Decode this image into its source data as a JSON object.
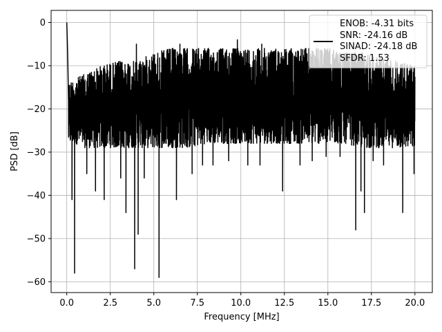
{
  "chart_data": {
    "type": "line",
    "title": "",
    "xlabel": "Frequency [MHz]",
    "ylabel": "PSD [dB]",
    "xlim": [
      -0.9,
      21.0
    ],
    "ylim": [
      -62.5,
      2.8
    ],
    "xticks": [
      0.0,
      2.5,
      5.0,
      7.5,
      10.0,
      12.5,
      15.0,
      17.5,
      20.0
    ],
    "xtick_labels": [
      "0.0",
      "2.5",
      "5.0",
      "7.5",
      "10.0",
      "12.5",
      "15.0",
      "17.5",
      "20.0"
    ],
    "yticks": [
      0,
      -10,
      -20,
      -30,
      -40,
      -50,
      -60
    ],
    "ytick_labels": [
      "0",
      "−10",
      "−20",
      "−30",
      "−40",
      "−50",
      "−60"
    ],
    "grid": true,
    "legend_position": "top-right",
    "legend_lines": [
      "ENOB: -4.31 bits",
      "SNR: -24.16 dB",
      "SINAD: -24.18 dB",
      "SFDR: 1.53"
    ],
    "series": [
      {
        "color": "#000000",
        "envelope": {
          "x": [
            0.1,
            0.5,
            1,
            2,
            3,
            4,
            5,
            6,
            7,
            8,
            9,
            10,
            11,
            12,
            13,
            14,
            15,
            16,
            17,
            18,
            19,
            20
          ],
          "upper": [
            -14,
            -13,
            -12,
            -10,
            -9,
            -9,
            -7,
            -6,
            -6,
            -6,
            -6,
            -6,
            -6,
            -6,
            -6,
            -6,
            -6,
            -7,
            -7,
            -8,
            -9,
            -10
          ],
          "lower": [
            -28,
            -28,
            -29,
            -29,
            -29,
            -29,
            -29,
            -29,
            -29,
            -28,
            -28,
            -28,
            -28,
            -28,
            -28,
            -28,
            -28,
            -28,
            -29,
            -29,
            -29,
            -29
          ]
        },
        "peaks": [
          {
            "x": 0.0,
            "y": 0
          },
          {
            "x": 0.03,
            "y": -4
          },
          {
            "x": 0.06,
            "y": -9
          },
          {
            "x": 4.0,
            "y": -5
          },
          {
            "x": 6.5,
            "y": -5
          },
          {
            "x": 9.8,
            "y": -4
          },
          {
            "x": 11.2,
            "y": -5
          }
        ],
        "dips": [
          {
            "x": 0.3,
            "y": -41
          },
          {
            "x": 0.45,
            "y": -58
          },
          {
            "x": 1.15,
            "y": -35
          },
          {
            "x": 1.65,
            "y": -39
          },
          {
            "x": 2.15,
            "y": -41
          },
          {
            "x": 3.1,
            "y": -36
          },
          {
            "x": 3.4,
            "y": -44
          },
          {
            "x": 3.9,
            "y": -57
          },
          {
            "x": 4.1,
            "y": -49
          },
          {
            "x": 4.45,
            "y": -36
          },
          {
            "x": 5.3,
            "y": -59
          },
          {
            "x": 6.3,
            "y": -41
          },
          {
            "x": 7.2,
            "y": -35
          },
          {
            "x": 7.8,
            "y": -33
          },
          {
            "x": 8.4,
            "y": -33
          },
          {
            "x": 9.3,
            "y": -32
          },
          {
            "x": 10.4,
            "y": -33
          },
          {
            "x": 11.1,
            "y": -33
          },
          {
            "x": 12.4,
            "y": -39
          },
          {
            "x": 13.4,
            "y": -33
          },
          {
            "x": 14.1,
            "y": -32
          },
          {
            "x": 14.9,
            "y": -31
          },
          {
            "x": 15.7,
            "y": -31
          },
          {
            "x": 16.6,
            "y": -48
          },
          {
            "x": 16.9,
            "y": -39
          },
          {
            "x": 17.1,
            "y": -44
          },
          {
            "x": 17.6,
            "y": -32
          },
          {
            "x": 18.2,
            "y": -33
          },
          {
            "x": 19.3,
            "y": -44
          },
          {
            "x": 19.95,
            "y": -35
          }
        ]
      }
    ]
  }
}
